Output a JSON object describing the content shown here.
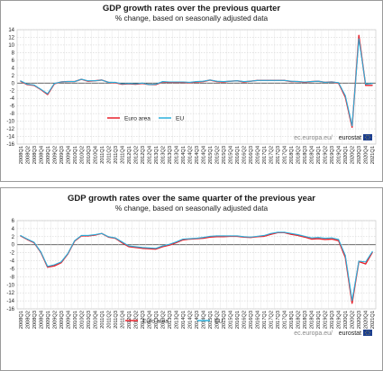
{
  "source_text": "ec.europa.eu/",
  "source_brand": "eurostat",
  "chart_data": [
    {
      "type": "line",
      "title": "GDP growth rates over the previous quarter",
      "subtitle": "% change, based on seasonally adjusted data",
      "ylim": [
        -16,
        14
      ],
      "yticks": [
        14,
        12,
        10,
        8,
        6,
        4,
        2,
        0,
        -2,
        -4,
        -6,
        -8,
        -10,
        -12,
        -14,
        -16
      ],
      "grid": true,
      "legend_position": "lower-left",
      "categories": [
        "2008Q1",
        "2008Q2",
        "2008Q3",
        "2008Q4",
        "2009Q1",
        "2009Q2",
        "2009Q3",
        "2009Q4",
        "2010Q1",
        "2010Q2",
        "2010Q3",
        "2010Q4",
        "2011Q1",
        "2011Q2",
        "2011Q3",
        "2011Q4",
        "2012Q1",
        "2012Q2",
        "2012Q3",
        "2012Q4",
        "2013Q1",
        "2013Q2",
        "2013Q3",
        "2013Q4",
        "2014Q1",
        "2014Q2",
        "2014Q3",
        "2014Q4",
        "2015Q1",
        "2015Q2",
        "2015Q3",
        "2015Q4",
        "2016Q1",
        "2016Q2",
        "2016Q3",
        "2016Q4",
        "2017Q1",
        "2017Q2",
        "2017Q3",
        "2017Q4",
        "2018Q1",
        "2018Q2",
        "2018Q3",
        "2018Q4",
        "2019Q1",
        "2019Q2",
        "2019Q3",
        "2019Q4",
        "2020Q1",
        "2020Q2",
        "2020Q3",
        "2020Q4",
        "2021Q1"
      ],
      "series": [
        {
          "name": "Euro area",
          "color": "#e8202a",
          "values": [
            0.5,
            -0.4,
            -0.6,
            -1.7,
            -3.0,
            -0.2,
            0.3,
            0.4,
            0.4,
            1.0,
            0.5,
            0.6,
            0.8,
            0.2,
            0.1,
            -0.3,
            -0.2,
            -0.3,
            -0.1,
            -0.4,
            -0.4,
            0.3,
            0.2,
            0.2,
            0.2,
            0.1,
            0.3,
            0.4,
            0.8,
            0.4,
            0.3,
            0.5,
            0.6,
            0.3,
            0.5,
            0.7,
            0.7,
            0.7,
            0.7,
            0.7,
            0.4,
            0.4,
            0.2,
            0.4,
            0.5,
            0.2,
            0.3,
            0.0,
            -3.7,
            -11.6,
            12.5,
            -0.6,
            -0.6
          ]
        },
        {
          "name": "EU",
          "color": "#2ab0dc",
          "values": [
            0.6,
            -0.3,
            -0.5,
            -1.6,
            -2.8,
            -0.1,
            0.3,
            0.4,
            0.4,
            1.0,
            0.6,
            0.6,
            0.8,
            0.2,
            0.2,
            -0.2,
            -0.1,
            -0.2,
            0.0,
            -0.4,
            -0.3,
            0.4,
            0.3,
            0.3,
            0.3,
            0.2,
            0.4,
            0.5,
            0.8,
            0.5,
            0.4,
            0.5,
            0.6,
            0.4,
            0.5,
            0.7,
            0.7,
            0.7,
            0.7,
            0.7,
            0.5,
            0.4,
            0.3,
            0.4,
            0.5,
            0.2,
            0.3,
            0.1,
            -3.3,
            -11.2,
            11.6,
            -0.3,
            -0.1
          ]
        }
      ]
    },
    {
      "type": "line",
      "title": "GDP growth rates over the same quarter of the previous year",
      "subtitle": "% change, based on seasonally adjusted data",
      "ylim": [
        -16,
        6
      ],
      "yticks": [
        6,
        4,
        2,
        0,
        -2,
        -4,
        -6,
        -8,
        -10,
        -12,
        -14,
        -16
      ],
      "grid": true,
      "legend_position": "bottom",
      "categories": [
        "2008Q1",
        "2008Q2",
        "2008Q3",
        "2008Q4",
        "2009Q1",
        "2009Q2",
        "2009Q3",
        "2009Q4",
        "2010Q1",
        "2010Q2",
        "2010Q3",
        "2010Q4",
        "2011Q1",
        "2011Q2",
        "2011Q3",
        "2011Q4",
        "2012Q1",
        "2012Q2",
        "2012Q3",
        "2012Q4",
        "2013Q1",
        "2013Q2",
        "2013Q3",
        "2013Q4",
        "2014Q1",
        "2014Q2",
        "2014Q3",
        "2014Q4",
        "2015Q1",
        "2015Q2",
        "2015Q3",
        "2015Q4",
        "2016Q1",
        "2016Q2",
        "2016Q3",
        "2016Q4",
        "2017Q1",
        "2017Q2",
        "2017Q3",
        "2017Q4",
        "2018Q1",
        "2018Q2",
        "2018Q3",
        "2018Q4",
        "2019Q1",
        "2019Q2",
        "2019Q3",
        "2019Q4",
        "2020Q1",
        "2020Q2",
        "2020Q3",
        "2020Q4",
        "2021Q1"
      ],
      "series": [
        {
          "name": "Euro area",
          "color": "#e8202a",
          "values": [
            2.2,
            1.3,
            0.5,
            -1.9,
            -5.6,
            -5.3,
            -4.5,
            -2.3,
            0.9,
            2.2,
            2.2,
            2.4,
            2.8,
            1.9,
            1.6,
            0.5,
            -0.5,
            -0.7,
            -0.9,
            -1.0,
            -1.1,
            -0.5,
            -0.1,
            0.5,
            1.2,
            1.4,
            1.5,
            1.6,
            1.9,
            2.0,
            2.0,
            2.1,
            2.1,
            1.9,
            1.8,
            2.0,
            2.1,
            2.6,
            3.0,
            3.0,
            2.6,
            2.3,
            1.9,
            1.4,
            1.5,
            1.3,
            1.4,
            1.0,
            -3.2,
            -14.6,
            -4.2,
            -4.8,
            -1.9
          ]
        },
        {
          "name": "EU",
          "color": "#2ab0dc",
          "values": [
            2.3,
            1.4,
            0.6,
            -1.8,
            -5.4,
            -5.0,
            -4.3,
            -2.2,
            1.0,
            2.3,
            2.3,
            2.5,
            2.8,
            2.0,
            1.7,
            0.7,
            -0.3,
            -0.5,
            -0.7,
            -0.8,
            -0.9,
            -0.3,
            0.1,
            0.7,
            1.4,
            1.5,
            1.6,
            1.8,
            2.1,
            2.2,
            2.2,
            2.2,
            2.2,
            2.0,
            1.9,
            2.1,
            2.3,
            2.8,
            3.1,
            3.1,
            2.8,
            2.5,
            2.1,
            1.7,
            1.8,
            1.6,
            1.7,
            1.3,
            -2.7,
            -13.9,
            -4.1,
            -4.3,
            -1.7
          ]
        }
      ]
    }
  ]
}
